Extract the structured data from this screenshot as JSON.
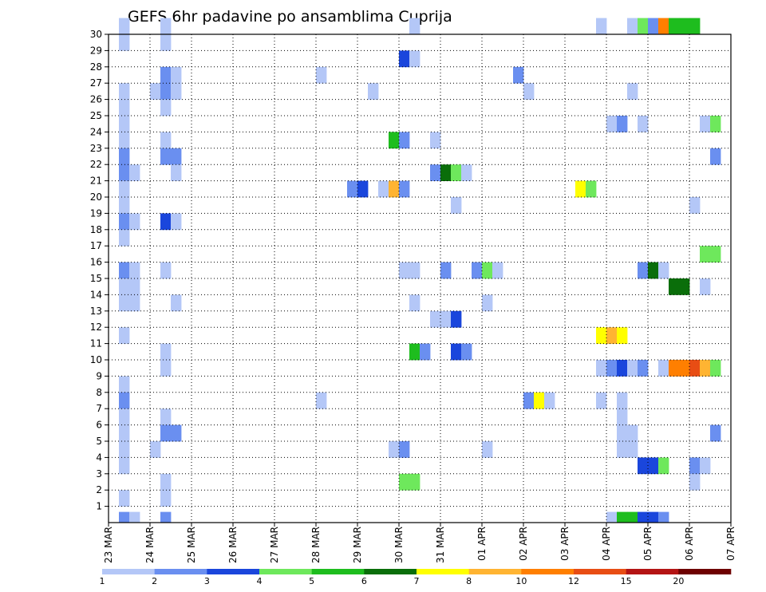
{
  "chart_data": {
    "type": "heatmap",
    "title": "GEFS 6hr padavine po ansamblima Cuprija",
    "x_ticks": [
      "23 MAR",
      "24 MAR",
      "25 MAR",
      "26 MAR",
      "27 MAR",
      "28 MAR",
      "29 MAR",
      "30 MAR",
      "31 MAR",
      "01 APR",
      "02 APR",
      "03 APR",
      "04 APR",
      "05 APR",
      "06 APR",
      "07 APR"
    ],
    "y_ticks": [
      "1",
      "2",
      "3",
      "4",
      "5",
      "6",
      "7",
      "8",
      "9",
      "10",
      "11",
      "12",
      "13",
      "14",
      "15",
      "16",
      "17",
      "18",
      "19",
      "20",
      "21",
      "22",
      "23",
      "24",
      "25",
      "26",
      "27",
      "28",
      "29",
      "30"
    ],
    "xlim": [
      0,
      60
    ],
    "ylim": [
      0,
      30
    ],
    "grid": true,
    "legend_position": "bottom",
    "legend_levels": [
      "1",
      "2",
      "3",
      "4",
      "5",
      "6",
      "7",
      "8",
      "10",
      "12",
      "15",
      "20"
    ],
    "level_colors": [
      "#b4c7f7",
      "#6a8ff0",
      "#1a46dc",
      "#6ee85c",
      "#1ebd1e",
      "#0a6e0a",
      "#ffff00",
      "#ffb432",
      "#ff7f00",
      "#e84d14",
      "#b41414",
      "#6e0000"
    ],
    "cells": [
      [
        1,
        30,
        1
      ],
      [
        1,
        29,
        1
      ],
      [
        1,
        26,
        1
      ],
      [
        1,
        25,
        1
      ],
      [
        1,
        24,
        1
      ],
      [
        1,
        23,
        1
      ],
      [
        1,
        22,
        2
      ],
      [
        1,
        21,
        2
      ],
      [
        2,
        21,
        1
      ],
      [
        1,
        20,
        1
      ],
      [
        1,
        19,
        1
      ],
      [
        1,
        18,
        2
      ],
      [
        2,
        18,
        1
      ],
      [
        1,
        17,
        1
      ],
      [
        1,
        15,
        2
      ],
      [
        2,
        15,
        1
      ],
      [
        1,
        14,
        1
      ],
      [
        2,
        14,
        1
      ],
      [
        1,
        13,
        1
      ],
      [
        2,
        13,
        1
      ],
      [
        1,
        11,
        1
      ],
      [
        1,
        8,
        1
      ],
      [
        1,
        7,
        2
      ],
      [
        1,
        6,
        1
      ],
      [
        1,
        5,
        1
      ],
      [
        1,
        4,
        1
      ],
      [
        1,
        3,
        1
      ],
      [
        1,
        1,
        1
      ],
      [
        1,
        0,
        2
      ],
      [
        2,
        0,
        1
      ],
      [
        4,
        26,
        1
      ],
      [
        4,
        4,
        1
      ],
      [
        5,
        30,
        1
      ],
      [
        5,
        29,
        1
      ],
      [
        5,
        27,
        2
      ],
      [
        6,
        27,
        1
      ],
      [
        5,
        26,
        2
      ],
      [
        6,
        26,
        1
      ],
      [
        5,
        25,
        1
      ],
      [
        5,
        23,
        1
      ],
      [
        5,
        22,
        2
      ],
      [
        6,
        22,
        2
      ],
      [
        6,
        21,
        1
      ],
      [
        5,
        18,
        3
      ],
      [
        6,
        18,
        1
      ],
      [
        5,
        15,
        1
      ],
      [
        6,
        13,
        1
      ],
      [
        5,
        10,
        1
      ],
      [
        5,
        9,
        1
      ],
      [
        5,
        6,
        1
      ],
      [
        5,
        5,
        2
      ],
      [
        6,
        5,
        2
      ],
      [
        5,
        2,
        1
      ],
      [
        5,
        1,
        1
      ],
      [
        5,
        0,
        2
      ],
      [
        20,
        27,
        1
      ],
      [
        20,
        7,
        1
      ],
      [
        23,
        20,
        2
      ],
      [
        24,
        20,
        3
      ],
      [
        25,
        26,
        1
      ],
      [
        26,
        20,
        1
      ],
      [
        27,
        20,
        8
      ],
      [
        28,
        20,
        2
      ],
      [
        27,
        23,
        5
      ],
      [
        28,
        23,
        2
      ],
      [
        27,
        4,
        1
      ],
      [
        28,
        4,
        2
      ],
      [
        28,
        28,
        3
      ],
      [
        29,
        28,
        1
      ],
      [
        29,
        30,
        1
      ],
      [
        28,
        15,
        1
      ],
      [
        29,
        15,
        1
      ],
      [
        29,
        13,
        1
      ],
      [
        28,
        2,
        4
      ],
      [
        29,
        2,
        4
      ],
      [
        29,
        10,
        5
      ],
      [
        30,
        10,
        2
      ],
      [
        31,
        23,
        1
      ],
      [
        31,
        21,
        2
      ],
      [
        32,
        21,
        6
      ],
      [
        33,
        21,
        4
      ],
      [
        34,
        21,
        1
      ],
      [
        32,
        12,
        1
      ],
      [
        31,
        12,
        1
      ],
      [
        33,
        12,
        3
      ],
      [
        32,
        15,
        2
      ],
      [
        33,
        10,
        3
      ],
      [
        34,
        10,
        2
      ],
      [
        33,
        19,
        1
      ],
      [
        35,
        15,
        2
      ],
      [
        36,
        15,
        4
      ],
      [
        37,
        15,
        1
      ],
      [
        36,
        13,
        1
      ],
      [
        36,
        4,
        1
      ],
      [
        39,
        27,
        2
      ],
      [
        40,
        26,
        1
      ],
      [
        40,
        7,
        2
      ],
      [
        41,
        7,
        7
      ],
      [
        42,
        7,
        1
      ],
      [
        45,
        20,
        7
      ],
      [
        46,
        20,
        4
      ],
      [
        47,
        30,
        1
      ],
      [
        47,
        11,
        7
      ],
      [
        48,
        11,
        8
      ],
      [
        49,
        11,
        7
      ],
      [
        47,
        9,
        1
      ],
      [
        48,
        9,
        2
      ],
      [
        47,
        7,
        1
      ],
      [
        48,
        24,
        1
      ],
      [
        48,
        0,
        1
      ],
      [
        49,
        24,
        2
      ],
      [
        49,
        9,
        3
      ],
      [
        50,
        9,
        1
      ],
      [
        49,
        7,
        1
      ],
      [
        49,
        6,
        1
      ],
      [
        49,
        5,
        1
      ],
      [
        50,
        5,
        1
      ],
      [
        49,
        4,
        1
      ],
      [
        50,
        4,
        1
      ],
      [
        50,
        0,
        5
      ],
      [
        49,
        0,
        5
      ],
      [
        50,
        30,
        1
      ],
      [
        50,
        26,
        1
      ],
      [
        51,
        30,
        4
      ],
      [
        51,
        24,
        1
      ],
      [
        52,
        30,
        2
      ],
      [
        51,
        15,
        2
      ],
      [
        52,
        15,
        6
      ],
      [
        53,
        15,
        1
      ],
      [
        51,
        9,
        2
      ],
      [
        53,
        9,
        1
      ],
      [
        51,
        3,
        3
      ],
      [
        52,
        3,
        3
      ],
      [
        53,
        3,
        4
      ],
      [
        51,
        0,
        3
      ],
      [
        52,
        0,
        3
      ],
      [
        53,
        0,
        2
      ],
      [
        53,
        30,
        9
      ],
      [
        54,
        30,
        5
      ],
      [
        55,
        30,
        5
      ],
      [
        56,
        30,
        5
      ],
      [
        54,
        14,
        6
      ],
      [
        55,
        14,
        6
      ],
      [
        54,
        9,
        9
      ],
      [
        55,
        9,
        9
      ],
      [
        56,
        9,
        10
      ],
      [
        57,
        9,
        8
      ],
      [
        58,
        9,
        4
      ],
      [
        56,
        19,
        1
      ],
      [
        56,
        3,
        2
      ],
      [
        57,
        3,
        1
      ],
      [
        56,
        2,
        1
      ],
      [
        57,
        24,
        1
      ],
      [
        58,
        24,
        4
      ],
      [
        57,
        16,
        4
      ],
      [
        58,
        16,
        4
      ],
      [
        57,
        14,
        1
      ],
      [
        58,
        22,
        2
      ],
      [
        58,
        5,
        2
      ]
    ]
  }
}
